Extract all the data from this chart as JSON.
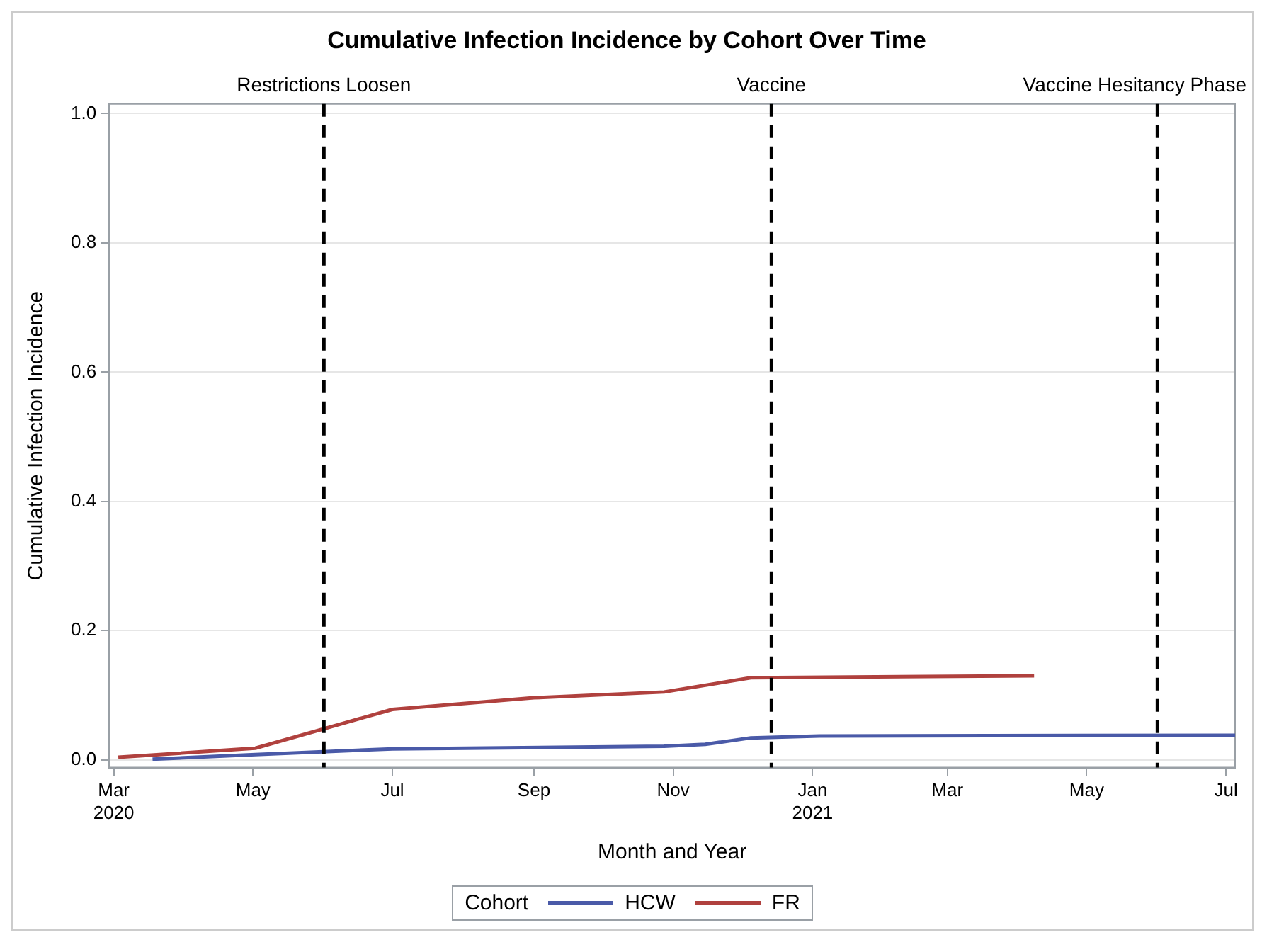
{
  "chart_data": {
    "type": "line",
    "title": "Cumulative Infection Incidence by Cohort Over Time",
    "xlabel": "Month and Year",
    "ylabel": "Cumulative Infection Incidence",
    "legend_title": "Cohort",
    "xlim": [
      "2020-02-28",
      "2021-07-05"
    ],
    "xticks": [
      {
        "value": "2020-03-01",
        "label": "Mar 2020"
      },
      {
        "value": "2020-05-01",
        "label": "May"
      },
      {
        "value": "2020-07-01",
        "label": "Jul"
      },
      {
        "value": "2020-09-01",
        "label": "Sep"
      },
      {
        "value": "2020-11-01",
        "label": "Nov"
      },
      {
        "value": "2021-01-01",
        "label": "Jan 2021"
      },
      {
        "value": "2021-03-01",
        "label": "Mar"
      },
      {
        "value": "2021-05-01",
        "label": "May"
      },
      {
        "value": "2021-07-01",
        "label": "Jul"
      }
    ],
    "ylim": [
      -0.012,
      1.015
    ],
    "yticks": [
      {
        "value": 0,
        "label": "0.0"
      },
      {
        "value": 0.2,
        "label": "0.2"
      },
      {
        "value": 0.4,
        "label": "0.4"
      },
      {
        "value": 0.6,
        "label": "0.6"
      },
      {
        "value": 0.8,
        "label": "0.8"
      },
      {
        "value": 1,
        "label": "1.0"
      }
    ],
    "series": [
      {
        "name": "HCW",
        "color": "#4a5aa8",
        "x": [
          "2020-03-18",
          "2020-05-02",
          "2020-07-01",
          "2020-10-28",
          "2020-11-15",
          "2020-12-05",
          "2021-01-04",
          "2021-07-05"
        ],
        "values": [
          0.001,
          0.008,
          0.017,
          0.021,
          0.024,
          0.034,
          0.037,
          0.038
        ]
      },
      {
        "name": "FR",
        "color": "#b0413e",
        "x": [
          "2020-03-03",
          "2020-05-02",
          "2020-07-01",
          "2020-09-01",
          "2020-10-28",
          "2020-12-05",
          "2021-04-08"
        ],
        "values": [
          0.004,
          0.018,
          0.078,
          0.096,
          0.105,
          0.127,
          0.13
        ]
      }
    ],
    "ref_lines": [
      {
        "axis": "x",
        "value": "2020-06-01",
        "label": "Restrictions Loosen",
        "color": "#000000",
        "line_style": "dashed"
      },
      {
        "axis": "x",
        "value": "2020-12-14",
        "label": "Vaccine",
        "color": "#000000",
        "line_style": "dashed"
      },
      {
        "axis": "x",
        "value": "2021-06-01",
        "label": "Vaccine Hesitancy Phase",
        "color": "#000000",
        "line_style": "dashed"
      }
    ],
    "grid": "y",
    "legend": "bottom",
    "marker": "none",
    "line_style": "solid"
  }
}
